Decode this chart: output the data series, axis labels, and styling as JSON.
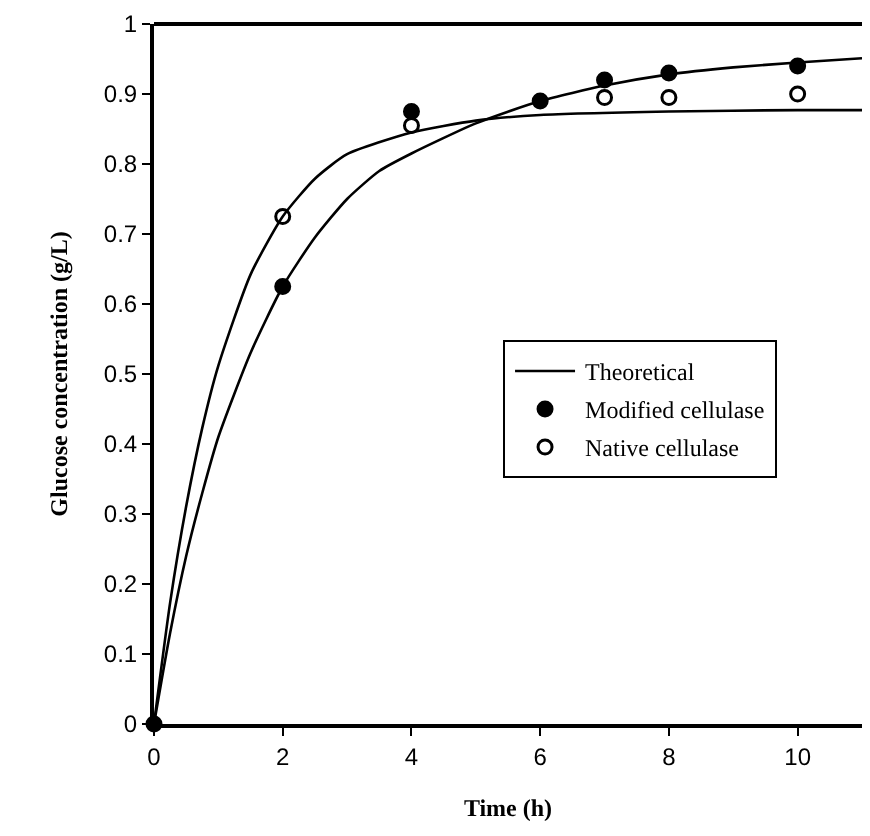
{
  "chart_data": {
    "type": "scatter",
    "xlabel": "Time (h)",
    "ylabel": "Glucose concentration (g/L)",
    "xlim": [
      0,
      11
    ],
    "xticks": [
      0,
      2,
      4,
      6,
      8,
      10
    ],
    "ylim": [
      0,
      1
    ],
    "yticks": [
      0,
      0.1,
      0.2,
      0.3,
      0.4,
      0.5,
      0.6,
      0.7,
      0.8,
      0.9,
      1
    ],
    "legend": "right",
    "series": [
      {
        "type": "line",
        "name": "Theoretical",
        "color": "#000000",
        "x": [
          0,
          0.25,
          0.5,
          0.75,
          1,
          1.5,
          2,
          2.5,
          3,
          4,
          5,
          6,
          8,
          10,
          11
        ],
        "values": [
          0,
          0.173,
          0.311,
          0.423,
          0.512,
          0.642,
          0.725,
          0.779,
          0.814,
          0.845,
          0.862,
          0.87,
          0.875,
          0.877,
          0.877
        ]
      },
      {
        "type": "line",
        "color": "#000000",
        "x": [
          0,
          0.25,
          0.5,
          0.75,
          1,
          1.5,
          2,
          2.5,
          3,
          3.5,
          4,
          5,
          6,
          7,
          8,
          9,
          10,
          11
        ],
        "values": [
          0,
          0.13,
          0.24,
          0.33,
          0.41,
          0.53,
          0.625,
          0.695,
          0.75,
          0.79,
          0.815,
          0.858,
          0.89,
          0.912,
          0.928,
          0.938,
          0.945,
          0.951
        ]
      },
      {
        "name": "Modified cellulase",
        "color": "#000000",
        "marker": "circle",
        "x": [
          0,
          2,
          4,
          6,
          7,
          8,
          10
        ],
        "values": [
          0,
          0.625,
          0.875,
          0.89,
          0.92,
          0.93,
          0.94
        ]
      },
      {
        "name": "Native cellulase",
        "color": "#000000",
        "marker": "circle-open",
        "x": [
          2,
          4,
          6,
          7,
          8,
          10
        ],
        "values": [
          0.725,
          0.855,
          null,
          0.895,
          0.895,
          0.9
        ]
      }
    ]
  }
}
